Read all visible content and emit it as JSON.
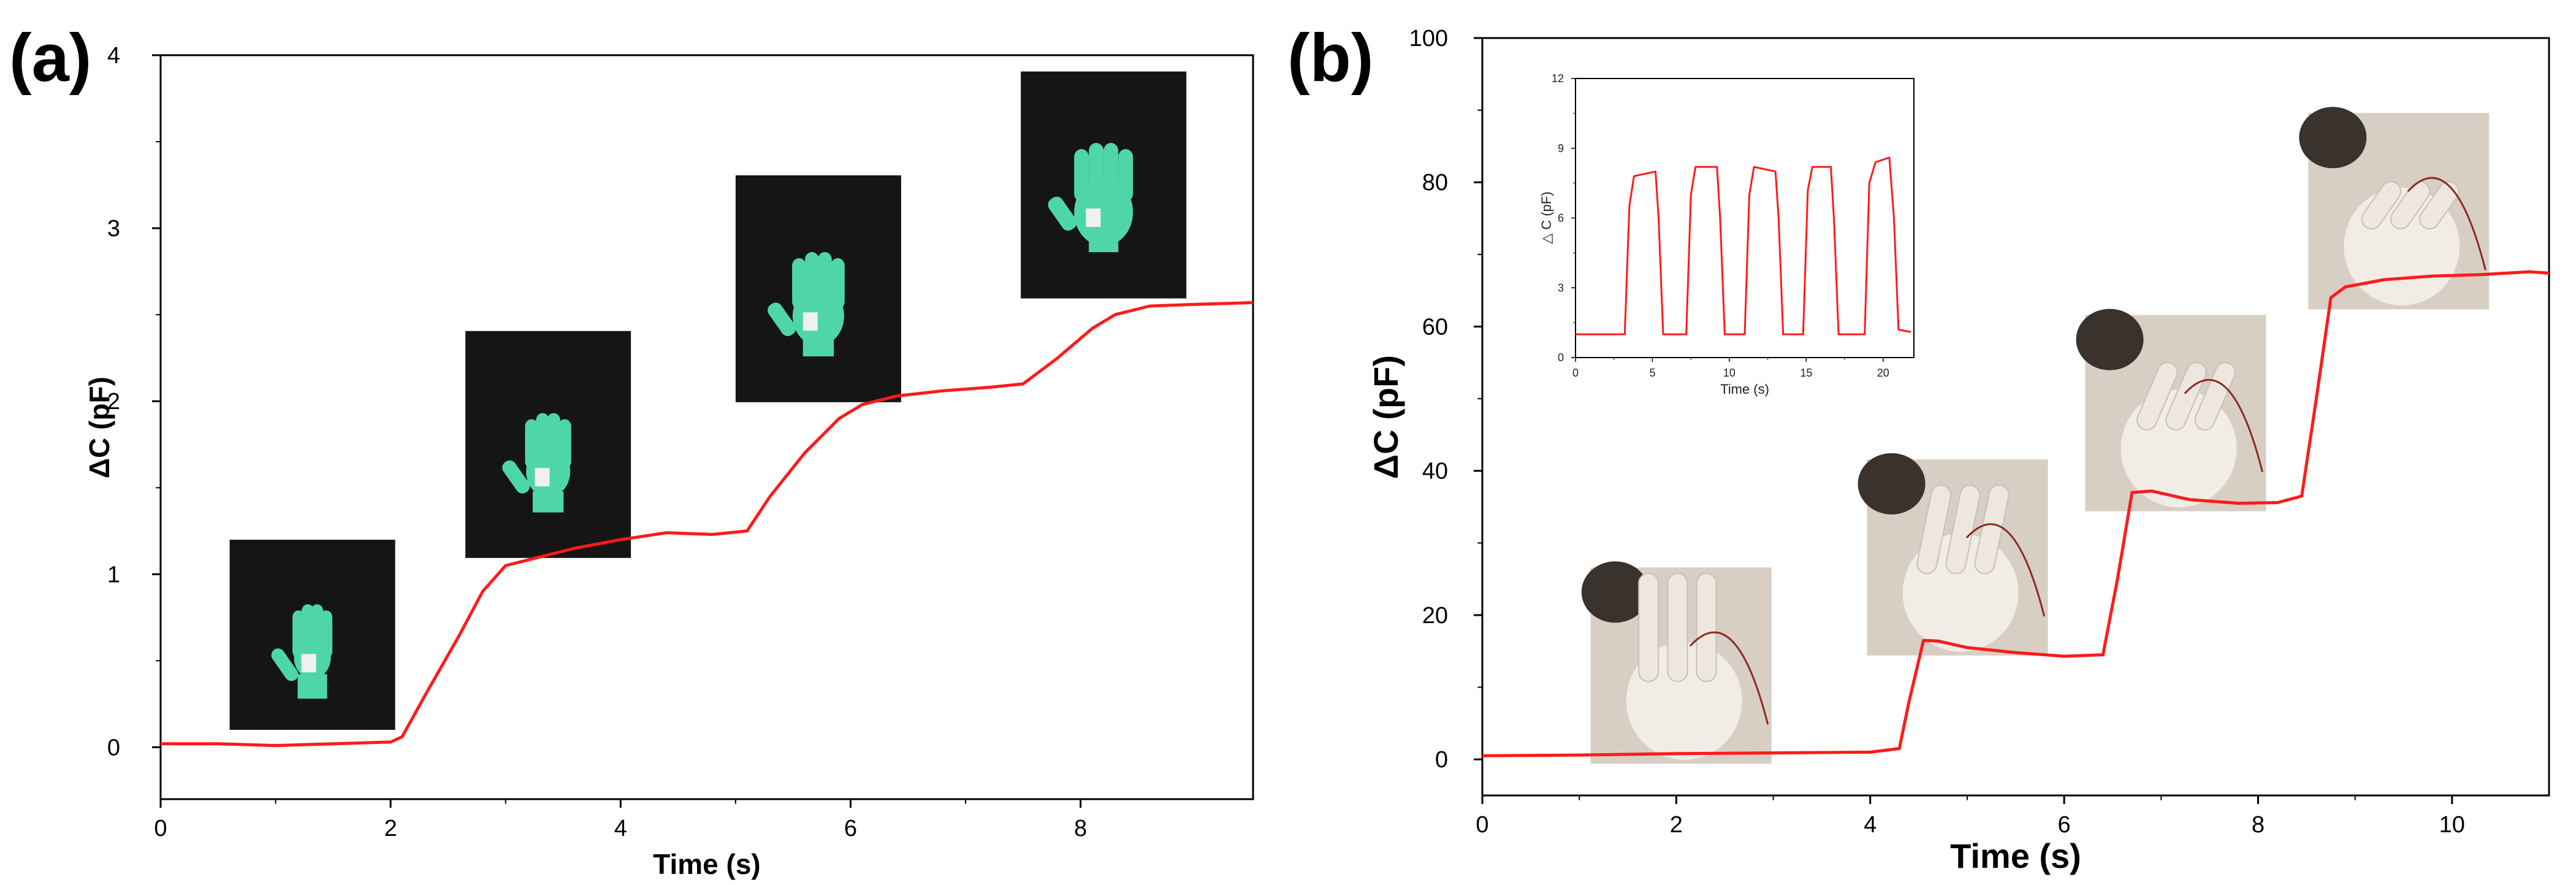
{
  "panels": {
    "a": {
      "label": "(a)"
    },
    "b": {
      "label": "(b)"
    }
  },
  "colors": {
    "line": "#ff1a1a",
    "axis": "#000000",
    "glove_green": "#4fd6a7",
    "photo_bg": "#151515",
    "photo_beige": "#d8cfc4"
  },
  "chart_data": [
    {
      "id": "a",
      "type": "line",
      "xlabel": "Time (s)",
      "ylabel": "ΔC (pF)",
      "xlim": [
        0,
        9.5
      ],
      "ylim": [
        -0.3,
        4
      ],
      "xticks": [
        0,
        2,
        4,
        6,
        8
      ],
      "yticks": [
        0,
        1,
        2,
        3,
        4
      ],
      "grid": false,
      "series": [
        {
          "x": [
            0,
            0.5,
            1,
            1.5,
            2,
            2.1,
            2.3,
            2.6,
            2.8,
            3.0,
            3.3,
            3.6,
            4.0,
            4.4,
            4.8,
            5.1,
            5.3,
            5.6,
            5.9,
            6.1,
            6.4,
            6.8,
            7.2,
            7.5,
            7.8,
            8.1,
            8.3,
            8.6,
            9.0,
            9.5
          ],
          "y": [
            0.02,
            0.02,
            0.01,
            0.02,
            0.03,
            0.06,
            0.3,
            0.65,
            0.9,
            1.05,
            1.1,
            1.15,
            1.2,
            1.24,
            1.23,
            1.25,
            1.45,
            1.7,
            1.9,
            1.98,
            2.03,
            2.06,
            2.08,
            2.1,
            2.25,
            2.42,
            2.5,
            2.55,
            2.56,
            2.57
          ]
        }
      ],
      "insets": [
        {
          "name": "glove-photo-flat",
          "x": 1.32,
          "y": 0.65
        },
        {
          "name": "glove-photo-slightly-inflated",
          "x": 3.37,
          "y": 1.75
        },
        {
          "name": "glove-photo-inflated",
          "x": 5.72,
          "y": 2.65
        },
        {
          "name": "glove-photo-fully-inflated",
          "x": 8.2,
          "y": 3.25
        }
      ]
    },
    {
      "id": "b",
      "type": "line",
      "xlabel": "Time (s)",
      "ylabel": "ΔC (pF)",
      "xlim": [
        0,
        11
      ],
      "ylim": [
        -5,
        100
      ],
      "xticks": [
        0,
        2,
        4,
        6,
        8,
        10
      ],
      "yticks": [
        0,
        20,
        40,
        60,
        80,
        100
      ],
      "grid": false,
      "series": [
        {
          "x": [
            0,
            1,
            2,
            3,
            4,
            4.3,
            4.4,
            4.55,
            4.7,
            5.0,
            5.5,
            6.0,
            6.4,
            6.55,
            6.7,
            6.9,
            7.3,
            7.8,
            8.2,
            8.45,
            8.6,
            8.75,
            8.9,
            9.3,
            9.8,
            10.3,
            10.8,
            11.0
          ],
          "y": [
            0.5,
            0.6,
            0.8,
            0.9,
            1.0,
            1.5,
            8,
            16.5,
            16.4,
            15.5,
            14.8,
            14.3,
            14.5,
            25,
            37,
            37.2,
            36,
            35.5,
            35.6,
            36.5,
            50,
            64,
            65.5,
            66.5,
            67,
            67.2,
            67.6,
            67.4
          ]
        }
      ],
      "insets": [
        {
          "name": "finger-photo-straight",
          "x": 2.05,
          "y": 13
        },
        {
          "name": "finger-photo-slight-bend",
          "x": 4.9,
          "y": 28
        },
        {
          "name": "finger-photo-bent",
          "x": 7.15,
          "y": 48
        },
        {
          "name": "finger-photo-fully-bent",
          "x": 9.45,
          "y": 76
        }
      ]
    },
    {
      "id": "b-inset",
      "type": "line",
      "xlabel": "Time (s)",
      "ylabel": "△ C (pF)",
      "xlim": [
        0,
        22
      ],
      "ylim": [
        0,
        12
      ],
      "xticks": [
        0,
        5,
        10,
        15,
        20
      ],
      "yticks": [
        0,
        3,
        6,
        9,
        12
      ],
      "grid": false,
      "series": [
        {
          "x": [
            0,
            3.2,
            3.5,
            3.8,
            5.2,
            5.4,
            5.7,
            7.2,
            7.5,
            7.8,
            9.2,
            9.4,
            9.7,
            11.0,
            11.3,
            11.6,
            13.0,
            13.2,
            13.5,
            14.8,
            15.1,
            15.4,
            16.6,
            16.8,
            17.1,
            18.8,
            19.1,
            19.5,
            20.4,
            20.7,
            21.0,
            21.8
          ],
          "y": [
            1.0,
            1.0,
            6.5,
            7.8,
            8.0,
            6.0,
            1.0,
            1.0,
            7.0,
            8.2,
            8.2,
            6.0,
            1.0,
            1.0,
            7.0,
            8.2,
            8.0,
            6.0,
            1.0,
            1.0,
            7.2,
            8.2,
            8.2,
            6.0,
            1.0,
            1.0,
            7.5,
            8.4,
            8.6,
            6.0,
            1.2,
            1.1
          ]
        }
      ]
    }
  ]
}
